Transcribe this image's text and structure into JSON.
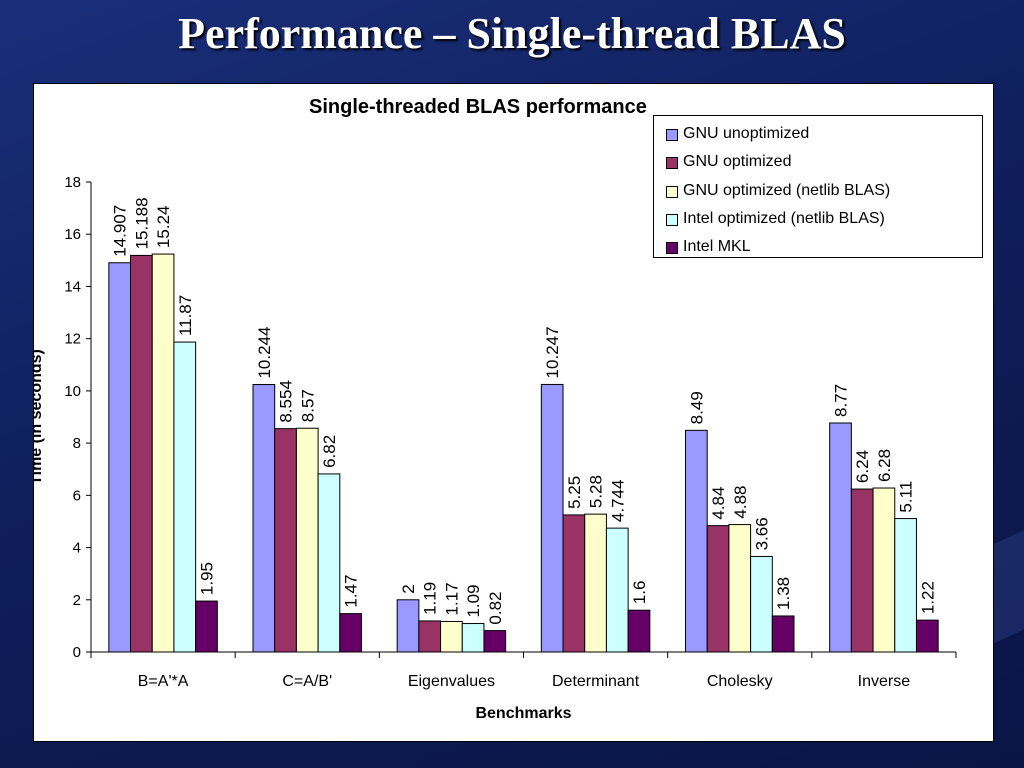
{
  "slide": {
    "title": "Performance – Single-thread BLAS"
  },
  "chart_data": {
    "type": "bar",
    "title": "Single-threaded BLAS performance",
    "xlabel": "Benchmarks",
    "ylabel": "Time (in seconds)",
    "ylim": [
      0,
      18
    ],
    "yticks": [
      "0",
      "2",
      "4",
      "6",
      "8",
      "10",
      "12",
      "14",
      "16",
      "18"
    ],
    "categories": [
      "B=A'*A",
      "C=A/B'",
      "Eigenvalues",
      "Determinant",
      "Cholesky",
      "Inverse"
    ],
    "legend_position": "top-right",
    "grid": false,
    "series": [
      {
        "name": "GNU unoptimized",
        "color": "#9999ff",
        "values": [
          14.907,
          10.244,
          2,
          10.247,
          8.49,
          8.77
        ],
        "labels": [
          "14.907",
          "10.244",
          "2",
          "10.247",
          "8.49",
          "8.77"
        ]
      },
      {
        "name": "GNU optimized",
        "color": "#993366",
        "values": [
          15.188,
          8.554,
          1.19,
          5.25,
          4.84,
          6.24
        ],
        "labels": [
          "15.188",
          "8.554",
          "1.19",
          "5.25",
          "4.84",
          "6.24"
        ]
      },
      {
        "name": "GNU optimized (netlib BLAS)",
        "color": "#ffffcc",
        "values": [
          15.24,
          8.57,
          1.17,
          5.28,
          4.88,
          6.28
        ],
        "labels": [
          "15.24",
          "8.57",
          "1.17",
          "5.28",
          "4.88",
          "6.28"
        ]
      },
      {
        "name": "Intel optimized (netlib BLAS)",
        "color": "#ccffff",
        "values": [
          11.87,
          6.82,
          1.09,
          4.744,
          3.66,
          5.11
        ],
        "labels": [
          "11.87",
          "6.82",
          "1.09",
          "4.744",
          "3.66",
          "5.11"
        ]
      },
      {
        "name": "Intel MKL",
        "color": "#660066",
        "values": [
          1.95,
          1.47,
          0.82,
          1.6,
          1.38,
          1.22
        ],
        "labels": [
          "1.95",
          "1.47",
          "0.82",
          "1.6",
          "1.38",
          "1.22"
        ]
      }
    ]
  }
}
